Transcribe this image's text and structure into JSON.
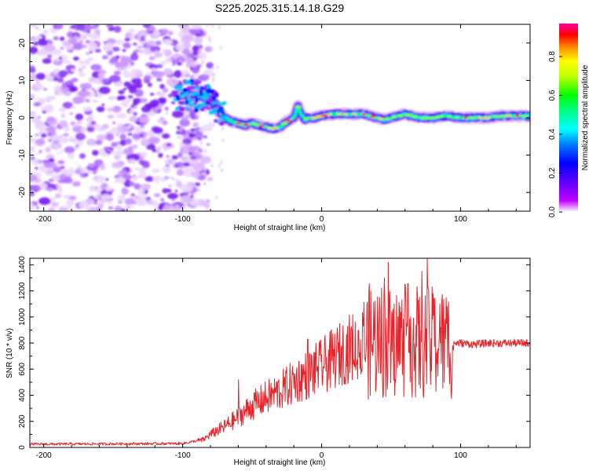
{
  "title": "S225.2025.315.14.18.G29",
  "chart_data": [
    {
      "type": "heatmap",
      "name": "spectrogram",
      "xlabel": "Height of straight line (km)",
      "ylabel": "Frequency (Hz)",
      "xlim": [
        -210,
        150
      ],
      "ylim": [
        -25,
        25
      ],
      "xticks": [
        -200,
        -100,
        0,
        100
      ],
      "yticks": [
        -20,
        -10,
        0,
        10,
        20
      ],
      "colorbar": {
        "label": "Normalized spectral amplitude",
        "range": [
          0,
          0.97
        ],
        "ticks": [
          0.0,
          0.2,
          0.4,
          0.6,
          0.8
        ],
        "tick_labels": [
          "0.0",
          "0.2",
          "0.4",
          "0.6",
          "0.8"
        ],
        "colors": [
          "#ffffff",
          "#8000ff",
          "#0000ff",
          "#00ffff",
          "#00ff00",
          "#ffff00",
          "#ff0000",
          "#ff00ff"
        ]
      },
      "ridge": {
        "x": [
          -100,
          -90,
          -80,
          -75,
          -70,
          -65,
          -60,
          -55,
          -50,
          -45,
          -40,
          -35,
          -30,
          -25,
          -20,
          -17,
          -15,
          -12,
          -10,
          -5,
          0,
          10,
          20,
          30,
          40,
          45,
          50,
          60,
          70,
          80,
          90,
          100,
          110,
          120,
          130,
          140,
          150
        ],
        "y": [
          6,
          6,
          5,
          2,
          0,
          -1,
          -1.5,
          -2,
          -1.5,
          -2,
          -2.5,
          -3,
          -2.5,
          -1,
          0,
          3,
          1,
          -0.5,
          0,
          0,
          0.5,
          1,
          1,
          1,
          0,
          -0.5,
          0,
          1,
          0,
          0,
          0.5,
          0,
          0,
          0,
          0.5,
          0.5,
          0.5
        ]
      },
      "noise_region_x": [
        -210,
        -90
      ]
    },
    {
      "type": "line",
      "name": "snr",
      "xlabel": "Height of straight line (km)",
      "ylabel": "SNR (10 * v/v)",
      "xlim": [
        -210,
        150
      ],
      "ylim": [
        0,
        1450
      ],
      "xticks": [
        -200,
        -100,
        0,
        100
      ],
      "yticks": [
        0,
        200,
        400,
        600,
        800,
        1000,
        1200,
        1400
      ],
      "color": "#e8232a",
      "envelope": {
        "x": [
          -210,
          -100,
          -85,
          -80,
          -70,
          -60,
          -50,
          -40,
          -30,
          -20,
          -10,
          0,
          10,
          20,
          30,
          40,
          50,
          60,
          70,
          80,
          90,
          100,
          110,
          120,
          130,
          150
        ],
        "y": [
          25,
          30,
          60,
          100,
          160,
          230,
          320,
          380,
          430,
          500,
          560,
          620,
          690,
          760,
          800,
          830,
          800,
          820,
          800,
          800,
          800,
          800,
          790,
          800,
          800,
          800
        ]
      },
      "spikes": [
        {
          "x": -60,
          "y": 520
        },
        {
          "x": -33,
          "y": 420
        },
        {
          "x": -10,
          "y": 830
        },
        {
          "x": -3,
          "y": 620
        },
        {
          "x": 25,
          "y": 640
        },
        {
          "x": 30,
          "y": 930
        },
        {
          "x": 45,
          "y": 1300
        },
        {
          "x": 48,
          "y": 1420
        },
        {
          "x": 52,
          "y": 1100
        },
        {
          "x": 60,
          "y": 1250
        },
        {
          "x": 64,
          "y": 1000
        },
        {
          "x": 72,
          "y": 1350
        },
        {
          "x": 76,
          "y": 1450
        },
        {
          "x": 80,
          "y": 1180
        },
        {
          "x": 85,
          "y": 1100
        },
        {
          "x": 90,
          "y": 950
        }
      ]
    }
  ]
}
